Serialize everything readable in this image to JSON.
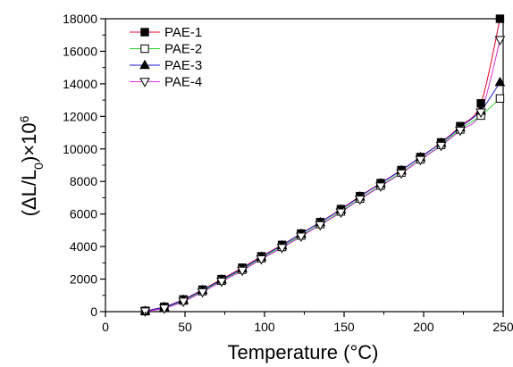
{
  "chart_data": {
    "type": "line",
    "xlabel": "Temperature (°C)",
    "ylabel_parts": {
      "a": "(ΔL/L",
      "sub": "0",
      "b": ")×10",
      "sup": "6"
    },
    "xlim": [
      0,
      250
    ],
    "ylim": [
      0,
      18000
    ],
    "x_ticks": [
      0,
      50,
      100,
      150,
      200,
      250
    ],
    "y_ticks": [
      0,
      2000,
      4000,
      6000,
      8000,
      10000,
      12000,
      14000,
      16000,
      18000
    ],
    "grid": false,
    "legend_position": "top-left",
    "x": [
      25,
      37,
      49,
      61,
      73,
      86,
      98,
      111,
      123,
      135,
      148,
      160,
      173,
      186,
      198,
      211,
      223,
      236,
      248
    ],
    "series": [
      {
        "name": "PAE-1",
        "color": "#e8002a",
        "marker": "square-filled",
        "values": [
          50,
          300,
          750,
          1350,
          2000,
          2700,
          3400,
          4100,
          4800,
          5500,
          6300,
          7100,
          7900,
          8700,
          9500,
          10400,
          11400,
          12800,
          18000
        ]
      },
      {
        "name": "PAE-2",
        "color": "#2bd12b",
        "marker": "square-open",
        "values": [
          30,
          250,
          680,
          1260,
          1900,
          2580,
          3280,
          3980,
          4680,
          5380,
          6160,
          6950,
          7750,
          8550,
          9360,
          10250,
          11200,
          12050,
          13100
        ]
      },
      {
        "name": "PAE-3",
        "color": "#1a1acc",
        "marker": "triangle-up-filled",
        "values": [
          40,
          280,
          720,
          1320,
          1960,
          2650,
          3360,
          4070,
          4780,
          5490,
          6270,
          7070,
          7880,
          8680,
          9490,
          10370,
          11320,
          12350,
          14100
        ]
      },
      {
        "name": "PAE-4",
        "color": "#d633d6",
        "marker": "triangle-down-open",
        "values": [
          20,
          200,
          620,
          1200,
          1850,
          2520,
          3220,
          3920,
          4620,
          5320,
          6100,
          6900,
          7700,
          8500,
          9330,
          10200,
          11130,
          12250,
          16700
        ]
      }
    ]
  }
}
